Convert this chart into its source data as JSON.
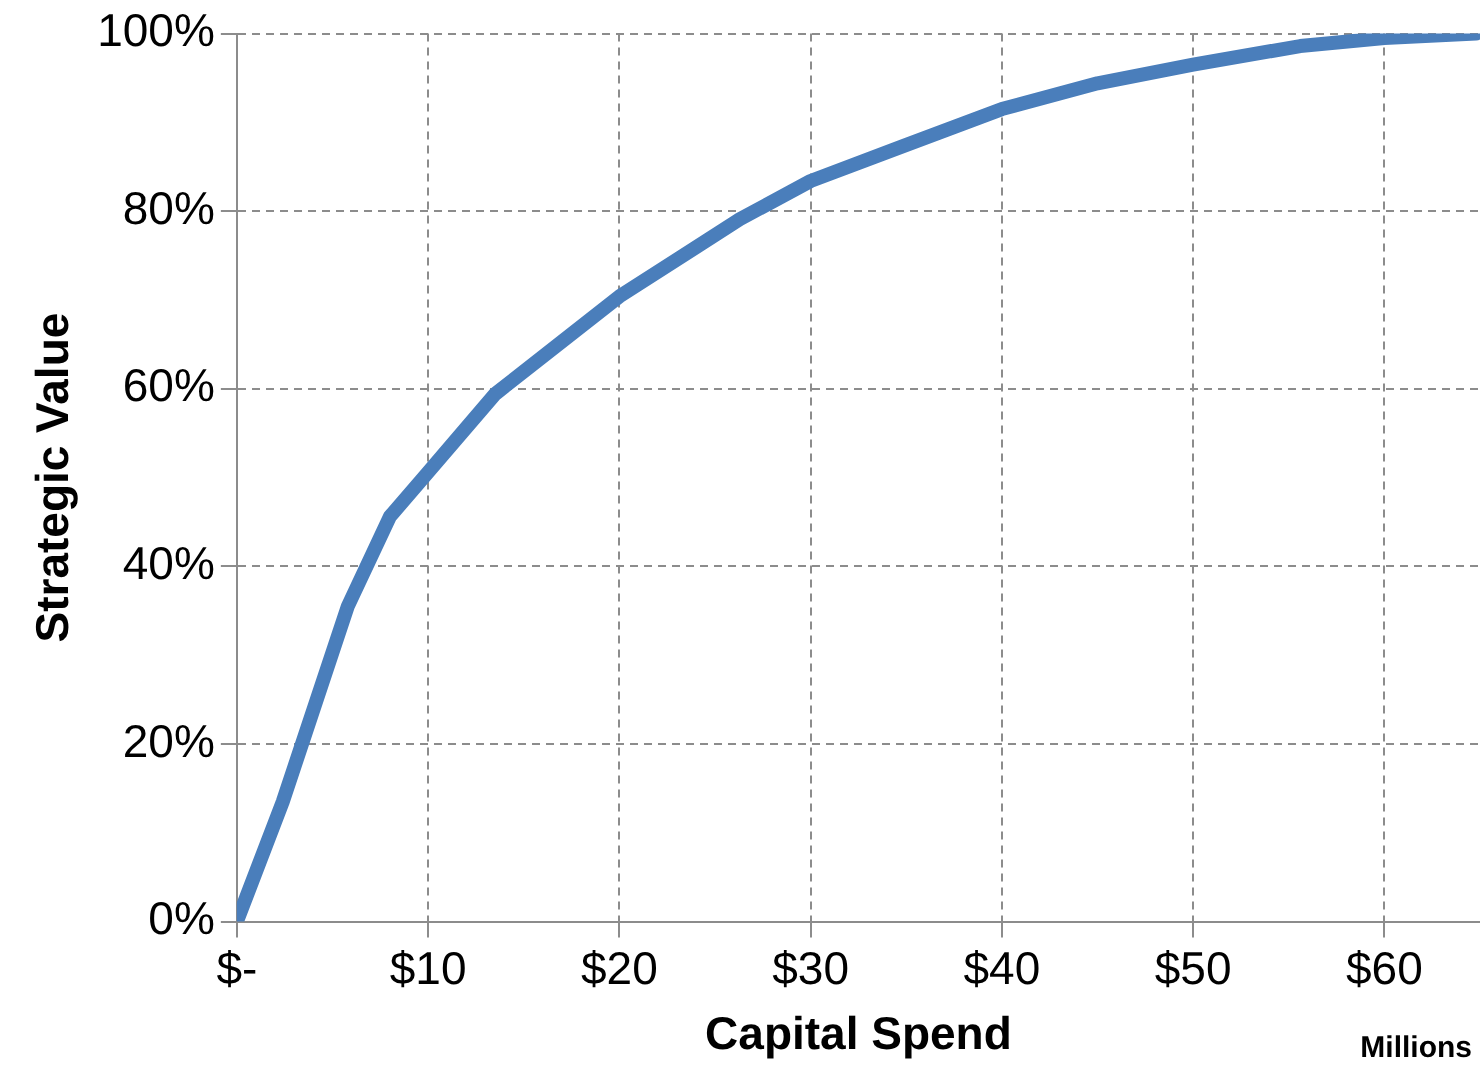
{
  "chart_data": {
    "type": "line",
    "xlabel": "Capital Spend",
    "ylabel": "Strategic Value",
    "annotations": [
      "Millions"
    ],
    "x": [
      0,
      2.4,
      5.8,
      8,
      10,
      13.5,
      20,
      26.3,
      30,
      34.8,
      40,
      45,
      50,
      55.6,
      60,
      64.8
    ],
    "series": [
      {
        "color": "#4a7ebb",
        "values": [
          0,
          13.5,
          35.5,
          45.6,
          50.6,
          59.4,
          70.4,
          79.1,
          83.4,
          87.3,
          91.5,
          94.4,
          96.5,
          98.6,
          99.5,
          100
        ]
      }
    ],
    "xlim": [
      0,
      65
    ],
    "xticks": [
      {
        "value": 0,
        "label": "$-"
      },
      {
        "value": 10,
        "label": "$10"
      },
      {
        "value": 20,
        "label": "$20"
      },
      {
        "value": 30,
        "label": "$30"
      },
      {
        "value": 40,
        "label": "$40"
      },
      {
        "value": 50,
        "label": "$50"
      },
      {
        "value": 60,
        "label": "$60"
      }
    ],
    "ylim": [
      0,
      100
    ],
    "yticks": [
      {
        "value": 0,
        "label": "0%"
      },
      {
        "value": 20,
        "label": "20%"
      },
      {
        "value": 40,
        "label": "40%"
      },
      {
        "value": 60,
        "label": "60%"
      },
      {
        "value": 80,
        "label": "80%"
      },
      {
        "value": 100,
        "label": "100%"
      }
    ],
    "grid": true,
    "legend": false,
    "marker": "none",
    "line_style": "solid"
  }
}
